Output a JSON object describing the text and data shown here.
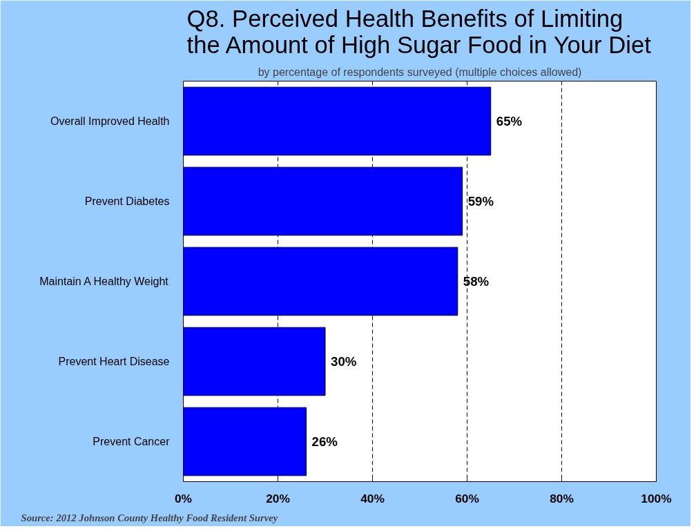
{
  "chart_data": {
    "type": "bar",
    "orientation": "horizontal",
    "title": "Q8. Perceived Health Benefits of Limiting the Amount of High Sugar Food in Your Diet",
    "subtitle": "by percentage of respondents surveyed (multiple choices allowed)",
    "categories": [
      "Overall Improved Health",
      "Prevent Diabetes",
      "Maintain A Healthy Weight",
      "Prevent Heart Disease",
      "Prevent Cancer"
    ],
    "values": [
      65,
      59,
      58,
      30,
      26
    ],
    "value_labels": [
      "65%",
      "59%",
      "58%",
      "30%",
      "26%"
    ],
    "color": "#0000ff",
    "xlim": [
      0,
      100
    ],
    "xticks": [
      {
        "value": 0,
        "label": "0%"
      },
      {
        "value": 20,
        "label": "20%"
      },
      {
        "value": 40,
        "label": "40%"
      },
      {
        "value": 60,
        "label": "60%"
      },
      {
        "value": 80,
        "label": "80%"
      },
      {
        "value": 100,
        "label": "100%"
      }
    ],
    "grid": "x",
    "annotations": [
      "Source: 2012 Johnson County Healthy Food Resident Survey"
    ]
  }
}
